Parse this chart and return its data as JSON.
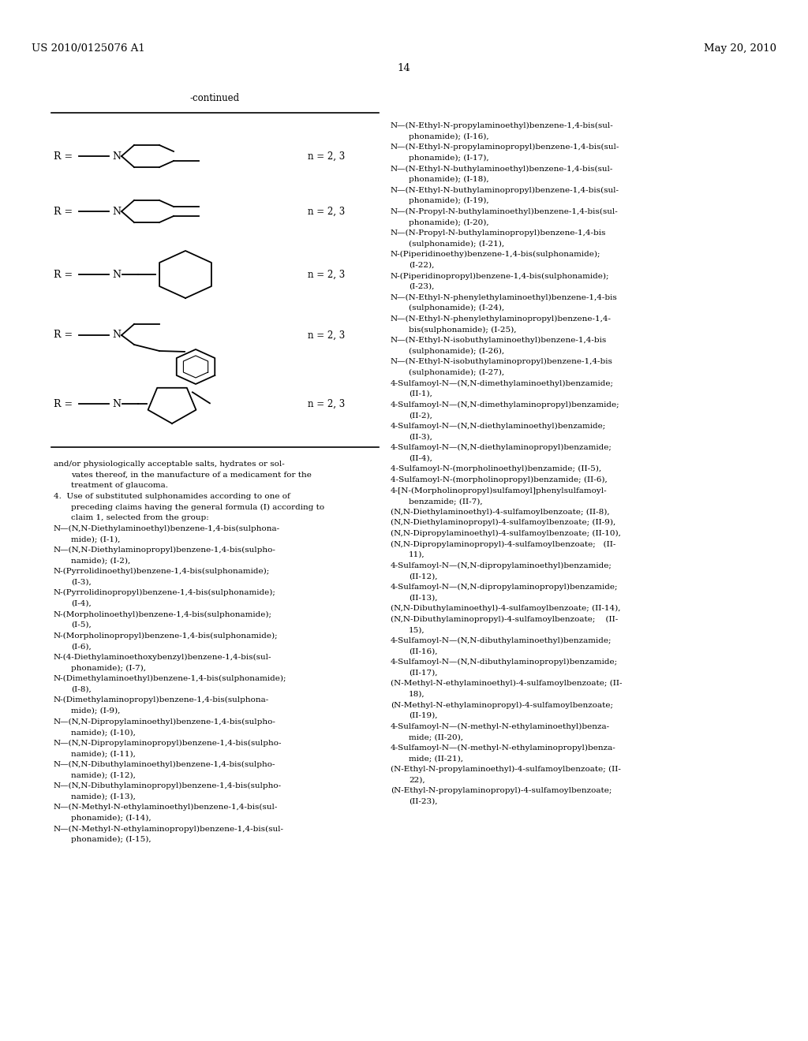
{
  "page_header_left": "US 2010/0125076 A1",
  "page_header_right": "May 20, 2010",
  "page_number": "14",
  "continued_label": "-continued",
  "background_color": "#ffffff",
  "text_color": "#000000",
  "n_labels": [
    "n = 2, 3",
    "n = 2, 3",
    "n = 2, 3",
    "n = 2, 3",
    "n = 2, 3"
  ],
  "right_column_lines": [
    [
      "N—(N-Ethyl-N-propylaminoethyl)benzene-1,4-bis(sul-",
      false
    ],
    [
      "    phonamide); (I-16),",
      true
    ],
    [
      "N—(N-Ethyl-N-propylaminopropyl)benzene-1,4-bis(sul-",
      false
    ],
    [
      "    phonamide); (I-17),",
      true
    ],
    [
      "N—(N-Ethyl-N-buthylaminoethyl)benzene-1,4-bis(sul-",
      false
    ],
    [
      "    phonamide); (I-18),",
      true
    ],
    [
      "N—(N-Ethyl-N-buthylaminopropyl)benzene-1,4-bis(sul-",
      false
    ],
    [
      "    phonamide); (I-19),",
      true
    ],
    [
      "N—(N-Propyl-N-buthylaminoethyl)benzene-1,4-bis(sul-",
      false
    ],
    [
      "    phonamide); (I-20),",
      true
    ],
    [
      "N—(N-Propyl-N-buthylaminopropyl)benzene-1,4-bis",
      false
    ],
    [
      "    (sulphonamide); (I-21),",
      true
    ],
    [
      "N-(Piperidinoethy)benzene-1,4-bis(sulphonamide);",
      false
    ],
    [
      "    (I-22),",
      true
    ],
    [
      "N-(Piperidinopropyl)benzene-1,4-bis(sulphonamide);",
      false
    ],
    [
      "    (I-23),",
      true
    ],
    [
      "N—(N-Ethyl-N-phenylethylaminoethyl)benzene-1,4-bis",
      false
    ],
    [
      "    (sulphonamide); (I-24),",
      true
    ],
    [
      "N—(N-Ethyl-N-phenylethylaminopropyl)benzene-1,4-",
      false
    ],
    [
      "    bis(sulphonamide); (I-25),",
      true
    ],
    [
      "N—(N-Ethyl-N-isobuthylaminoethyl)benzene-1,4-bis",
      false
    ],
    [
      "    (sulphonamide); (I-26),",
      true
    ],
    [
      "N—(N-Ethyl-N-isobuthylaminopropyl)benzene-1,4-bis",
      false
    ],
    [
      "    (sulphonamide); (I-27),",
      true
    ],
    [
      "4-Sulfamoyl-N—(N,N-dimethylaminoethyl)benzamide;",
      false
    ],
    [
      "    (II-1),",
      true
    ],
    [
      "4-Sulfamoyl-N—(N,N-dimethylaminopropyl)benzamide;",
      false
    ],
    [
      "    (II-2),",
      true
    ],
    [
      "4-Sulfamoyl-N—(N,N-diethylaminoethyl)benzamide;",
      false
    ],
    [
      "    (II-3),",
      true
    ],
    [
      "4-Sulfamoyl-N—(N,N-diethylaminopropyl)benzamide;",
      false
    ],
    [
      "    (II-4),",
      true
    ],
    [
      "4-Sulfamoyl-N-(morpholinoethyl)benzamide; (II-5),",
      false
    ],
    [
      "4-Sulfamoyl-N-(morpholinopropyl)benzamide; (II-6),",
      false
    ],
    [
      "4-[N-(Morpholinopropyl)sulfamoyl]phenylsulfamoyl-",
      false
    ],
    [
      "    benzamide; (II-7),",
      true
    ],
    [
      "(N,N-Diethylaminoethyl)-4-sulfamoylbenzoate; (II-8),",
      false
    ],
    [
      "(N,N-Diethylaminopropyl)-4-sulfamoylbenzoate; (II-9),",
      false
    ],
    [
      "(N,N-Dipropylaminoethyl)-4-sulfamoylbenzoate; (II-10),",
      false
    ],
    [
      "(N,N-Dipropylaminopropyl)-4-sulfamoylbenzoate;   (II-",
      false
    ],
    [
      "    11),",
      true
    ],
    [
      "4-Sulfamoyl-N—(N,N-dipropylaminoethyl)benzamide;",
      false
    ],
    [
      "    (II-12),",
      true
    ],
    [
      "4-Sulfamoyl-N—(N,N-dipropylaminopropyl)benzamide;",
      false
    ],
    [
      "    (II-13),",
      true
    ],
    [
      "(N,N-Dibuthylaminoethyl)-4-sulfamoylbenzoate; (II-14),",
      false
    ],
    [
      "(N,N-Dibuthylaminopropyl)-4-sulfamoylbenzoate;    (II-",
      false
    ],
    [
      "    15),",
      true
    ],
    [
      "4-Sulfamoyl-N—(N,N-dibuthylaminoethyl)benzamide;",
      false
    ],
    [
      "    (II-16),",
      true
    ],
    [
      "4-Sulfamoyl-N—(N,N-dibuthylaminopropyl)benzamide;",
      false
    ],
    [
      "    (II-17),",
      true
    ],
    [
      "(N-Methyl-N-ethylaminoethyl)-4-sulfamoylbenzoate; (II-",
      false
    ],
    [
      "    18),",
      true
    ],
    [
      "(N-Methyl-N-ethylaminopropyl)-4-sulfamoylbenzoate;",
      false
    ],
    [
      "    (II-19),",
      true
    ],
    [
      "4-Sulfamoyl-N—(N-methyl-N-ethylaminoethyl)benza-",
      false
    ],
    [
      "    mide; (II-20),",
      true
    ],
    [
      "4-Sulfamoyl-N—(N-methyl-N-ethylaminopropyl)benza-",
      false
    ],
    [
      "    mide; (II-21),",
      true
    ],
    [
      "(N-Ethyl-N-propylaminoethyl)-4-sulfamoylbenzoate; (II-",
      false
    ],
    [
      "    22),",
      true
    ],
    [
      "(N-Ethyl-N-propylaminopropyl)-4-sulfamoylbenzoate;",
      false
    ],
    [
      "    (II-23),",
      true
    ]
  ],
  "left_bottom_lines": [
    [
      "and/or physiologically acceptable salts, hydrates or sol-",
      false
    ],
    [
      "    vates thereof, in the manufacture of a medicament for the",
      true
    ],
    [
      "    treatment of glaucoma.",
      true
    ],
    [
      "4.  Use of substituted sulphonamides according to one of",
      false
    ],
    [
      "    preceding claims having the general formula (I) according to",
      true
    ],
    [
      "    claim 1, selected from the group:",
      true
    ],
    [
      "N—(N,N-Diethylaminoethyl)benzene-1,4-bis(sulphona-",
      false
    ],
    [
      "    mide); (I-1),",
      true
    ],
    [
      "N—(N,N-Diethylaminopropyl)benzene-1,4-bis(sulpho-",
      false
    ],
    [
      "    namide); (I-2),",
      true
    ],
    [
      "N-(Pyrrolidinoethyl)benzene-1,4-bis(sulphonamide);",
      false
    ],
    [
      "    (I-3),",
      true
    ],
    [
      "N-(Pyrrolidinopropyl)benzene-1,4-bis(sulphonamide);",
      false
    ],
    [
      "    (I-4),",
      true
    ],
    [
      "N-(Morpholinoethyl)benzene-1,4-bis(sulphonamide);",
      false
    ],
    [
      "    (I-5),",
      true
    ],
    [
      "N-(Morpholinopropyl)benzene-1,4-bis(sulphonamide);",
      false
    ],
    [
      "    (I-6),",
      true
    ],
    [
      "N-(4-Diethylaminoethoxybenzyl)benzene-1,4-bis(sul-",
      false
    ],
    [
      "    phonamide); (I-7),",
      true
    ],
    [
      "N-(Dimethylaminoethyl)benzene-1,4-bis(sulphonamide);",
      false
    ],
    [
      "    (I-8),",
      true
    ],
    [
      "N-(Dimethylaminopropyl)benzene-1,4-bis(sulphona-",
      false
    ],
    [
      "    mide); (I-9),",
      true
    ],
    [
      "N—(N,N-Dipropylaminoethyl)benzene-1,4-bis(sulpho-",
      false
    ],
    [
      "    namide); (I-10),",
      true
    ],
    [
      "N—(N,N-Dipropylaminopropyl)benzene-1,4-bis(sulpho-",
      false
    ],
    [
      "    namide); (I-11),",
      true
    ],
    [
      "N—(N,N-Dibuthylaminoethyl)benzene-1,4-bis(sulpho-",
      false
    ],
    [
      "    namide); (I-12),",
      true
    ],
    [
      "N—(N,N-Dibuthylaminopropyl)benzene-1,4-bis(sulpho-",
      false
    ],
    [
      "    namide); (I-13),",
      true
    ],
    [
      "N—(N-Methyl-N-ethylaminoethyl)benzene-1,4-bis(sul-",
      false
    ],
    [
      "    phonamide); (I-14),",
      true
    ],
    [
      "N—(N-Methyl-N-ethylaminopropyl)benzene-1,4-bis(sul-",
      false
    ],
    [
      "    phonamide); (I-15),",
      true
    ]
  ]
}
